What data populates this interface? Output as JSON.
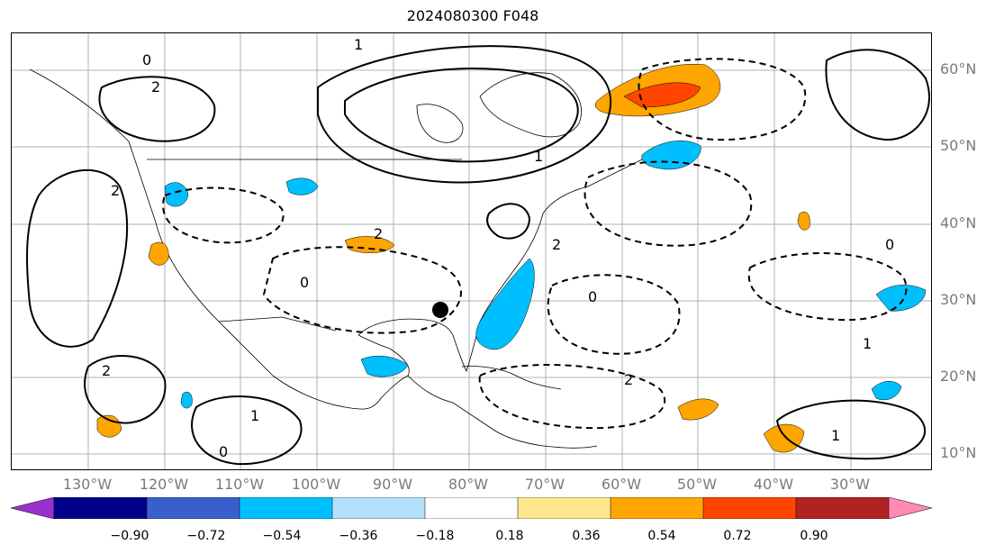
{
  "title": "2024080300 F048",
  "lat_labels": [
    "60°N",
    "50°N",
    "40°N",
    "30°N",
    "20°N",
    "10°N"
  ],
  "lon_labels": [
    "130°W",
    "120°W",
    "110°W",
    "100°W",
    "90°W",
    "80°W",
    "70°W",
    "60°W",
    "50°W",
    "40°W",
    "30°W"
  ],
  "colorbar": {
    "ticks": [
      "−0.90",
      "−0.72",
      "−0.54",
      "−0.36",
      "−0.18",
      "0.18",
      "0.36",
      "0.54",
      "0.72",
      "0.90"
    ],
    "colors": [
      "#9932cc",
      "#00008b",
      "#3a5fcd",
      "#00bfff",
      "#b0e0fa",
      "#ffffff",
      "#ffe68a",
      "#ffa500",
      "#ff4500",
      "#b22222",
      "#ff8ab4"
    ]
  },
  "contour_labels": [
    "2",
    "0",
    "1",
    "2",
    "0",
    "2",
    "1",
    "2",
    "0",
    "1",
    "2",
    "0",
    "1",
    "0",
    "2",
    "1"
  ],
  "markers": [
    {
      "name": "storm-center",
      "color": "#000000"
    }
  ],
  "colors": {
    "blue_fill": "#00bfff",
    "orange_fill": "#ffa500",
    "red_fill": "#ff4500",
    "axis_text": "#7a7a7a"
  }
}
